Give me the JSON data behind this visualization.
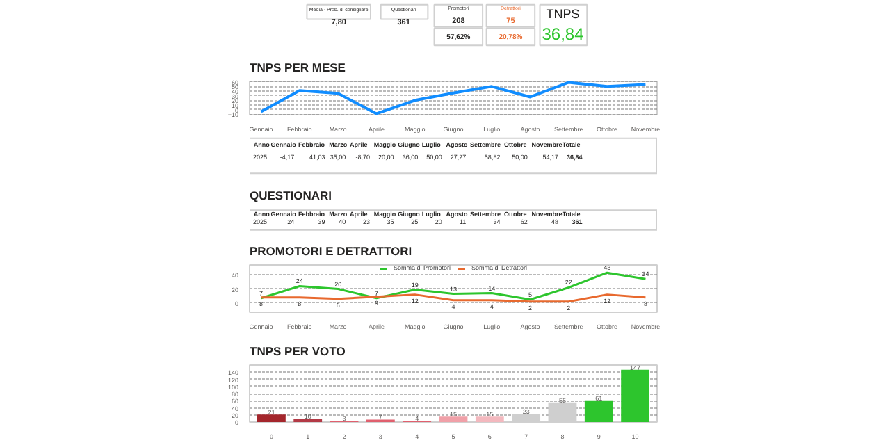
{
  "chart_data": [
    {
      "type": "other",
      "annotations": [
        "Media - Prob. di consigliare",
        "7,80",
        "Questionari",
        "361",
        "Promotori",
        "208",
        "Detrattori",
        "75",
        "57,62%",
        "20,78%",
        "TNPS",
        "36,84"
      ]
    },
    {
      "type": "line",
      "title": "TNPS PER MESE",
      "categories": [
        "Gennaio",
        "Febbraio",
        "Marzo",
        "Aprile",
        "Maggio",
        "Giugno",
        "Luglio",
        "Agosto",
        "Settembre",
        "Ottobre",
        "Novembre"
      ],
      "series": [
        {
          "color": "#118dff",
          "values": [
            -4.17,
            41.03,
            35.0,
            -8.7,
            20.0,
            36.0,
            50.0,
            27.27,
            58.82,
            50.0,
            54.17
          ]
        }
      ],
      "value_labels": [
        "-4,17",
        "41,03",
        "35,00",
        "-8,70",
        "20,00",
        "36,00",
        "50,00",
        "27,27",
        "58,82",
        "50,00",
        "54,17"
      ],
      "annotations": [
        "Anno",
        "2025",
        "Totale",
        "36,84"
      ],
      "ylim": [
        -11,
        61
      ],
      "yticks": [
        -10,
        0,
        10,
        20,
        30,
        40,
        50,
        60
      ],
      "grid": "y",
      "marker": "none",
      "line_style": "solid"
    },
    {
      "type": "other",
      "title": "QUESTIONARI",
      "categories": [
        "Gennaio",
        "Febbraio",
        "Marzo",
        "Aprile",
        "Maggio",
        "Giugno",
        "Luglio",
        "Agosto",
        "Settembre",
        "Ottobre",
        "Novembre"
      ],
      "values": [
        24,
        39,
        40,
        23,
        35,
        25,
        20,
        11,
        34,
        62,
        48
      ],
      "data_labels": true,
      "annotations": [
        "Anno",
        "2025",
        "Totale",
        "361"
      ]
    },
    {
      "type": "line",
      "title": "PROMOTORI E DETRATTORI",
      "categories": [
        "Gennaio",
        "Febbraio",
        "Marzo",
        "Aprile",
        "Maggio",
        "Giugno",
        "Luglio",
        "Agosto",
        "Settembre",
        "Ottobre",
        "Novembre"
      ],
      "series": [
        {
          "name": "Somma di Promotori",
          "color": "#2dc52d",
          "values": [
            7,
            24,
            20,
            7,
            19,
            13,
            14,
            5,
            22,
            43,
            34
          ]
        },
        {
          "name": "Somma di Detrattori",
          "color": "#e8692e",
          "values": [
            8,
            8,
            6,
            9,
            12,
            4,
            4,
            2,
            2,
            12,
            8
          ]
        }
      ],
      "ylim": [
        -13,
        54
      ],
      "yticks": [
        0,
        20,
        40
      ],
      "grid": "y",
      "legend": "top",
      "data_labels": true,
      "marker": "none"
    },
    {
      "type": "bar",
      "title": "TNPS PER VOTO",
      "categories": [
        "0",
        "1",
        "2",
        "3",
        "4",
        "5",
        "6",
        "7",
        "8",
        "9",
        "10"
      ],
      "values": [
        21,
        10,
        3,
        7,
        4,
        15,
        15,
        23,
        55,
        61,
        147
      ],
      "colors": [
        "#a4262c",
        "#b33a46",
        "#e0606e",
        "#e0606e",
        "#e0606e",
        "#f0a0a8",
        "#f3b8be",
        "#cfcfcf",
        "#cfcfcf",
        "#2dc52d",
        "#2dc52d"
      ],
      "ylim": [
        0,
        160
      ],
      "yticks": [
        0,
        20,
        40,
        60,
        80,
        100,
        120,
        140
      ],
      "grid": "y",
      "data_labels": true
    }
  ]
}
